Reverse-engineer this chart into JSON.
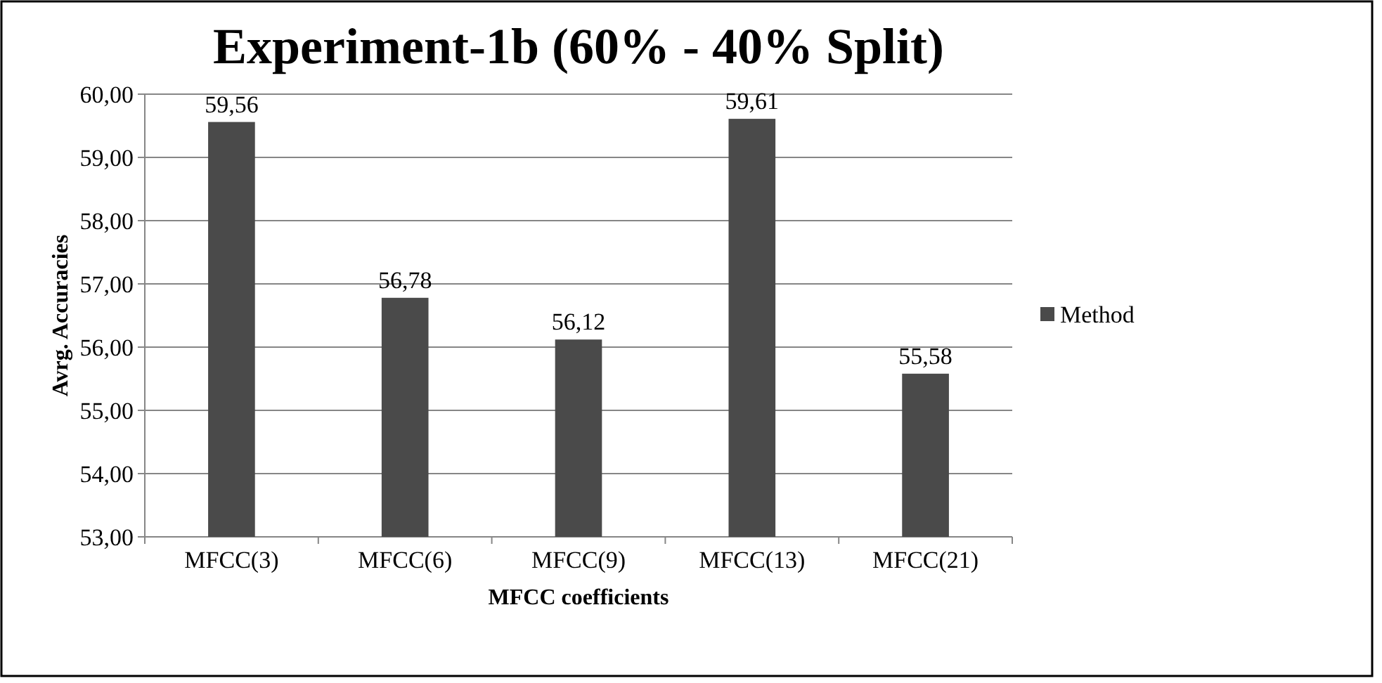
{
  "chart_data": {
    "type": "bar",
    "title": "Experiment-1b (60% - 40% Split)",
    "xlabel": "MFCC coefficients",
    "ylabel": "Avrg. Accuracies",
    "categories": [
      "MFCC(3)",
      "MFCC(6)",
      "MFCC(9)",
      "MFCC(13)",
      "MFCC(21)"
    ],
    "series": [
      {
        "name": "Method",
        "color": "#4a4a4a",
        "values": [
          59.56,
          56.78,
          56.12,
          59.61,
          55.58
        ]
      }
    ],
    "value_labels": [
      "59,56",
      "56,78",
      "56,12",
      "59,61",
      "55,58"
    ],
    "ylim": [
      53,
      60
    ],
    "yticks": [
      {
        "value": 53,
        "label": "53,00"
      },
      {
        "value": 54,
        "label": "54,00"
      },
      {
        "value": 55,
        "label": "55,00"
      },
      {
        "value": 56,
        "label": "56,00"
      },
      {
        "value": 57,
        "label": "57,00"
      },
      {
        "value": 58,
        "label": "58,00"
      },
      {
        "value": 59,
        "label": "59,00"
      },
      {
        "value": 60,
        "label": "60,00"
      }
    ],
    "grid": "y",
    "legend": "right"
  }
}
